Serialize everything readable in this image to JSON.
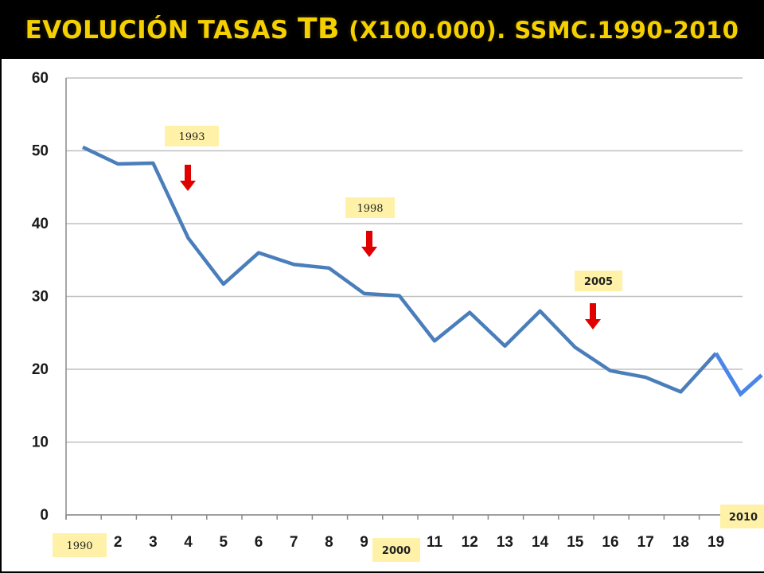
{
  "title": {
    "main": "EVOLUCIÓN TASAS",
    "tb": "TB",
    "rest": "(X100.000). SSMC.1990-2010"
  },
  "colors": {
    "title": "#f5d000",
    "line": "#4a7ebb",
    "line_extension": "#4a86e8",
    "arrow": "#e00000",
    "label_box": "#fff2a8",
    "grid": "#c0c0c0"
  },
  "chart_data": {
    "type": "line",
    "title": "EVOLUCIÓN TASAS TB (X100.000). SSMC.1990-2010",
    "xlabel": "",
    "ylabel": "",
    "ylim": [
      0,
      60
    ],
    "yticks": [
      0,
      10,
      20,
      30,
      40,
      50,
      60
    ],
    "grid": true,
    "x_tick_labels": [
      "",
      "2",
      "3",
      "4",
      "5",
      "6",
      "7",
      "8",
      "9",
      "",
      "11",
      "12",
      "13",
      "14",
      "15",
      "16",
      "17",
      "18",
      "19"
    ],
    "x": [
      1,
      2,
      3,
      4,
      5,
      6,
      7,
      8,
      9,
      10,
      11,
      12,
      13,
      14,
      15,
      16,
      17,
      18,
      19
    ],
    "series": [
      {
        "values": [
          50.5,
          48.2,
          48.3,
          38,
          31.7,
          36,
          34.4,
          33.9,
          30.4,
          30.1,
          23.9,
          27.8,
          23.2,
          28,
          23,
          19.8,
          18.9,
          16.9,
          22.2
        ]
      }
    ],
    "extension": {
      "x": [
        19,
        19.7,
        20.3
      ],
      "values": [
        22.2,
        16.6,
        19.2
      ]
    },
    "annotations": [
      {
        "label": "1993",
        "x": 4
      },
      {
        "label": "1998",
        "x": 9.1
      },
      {
        "label": "2005",
        "x": 16
      }
    ],
    "x_labels_boxed": [
      {
        "label": "1990",
        "x": 1
      },
      {
        "label": "2000",
        "x": 10
      },
      {
        "label": "2010",
        "x": 20.1
      }
    ]
  }
}
